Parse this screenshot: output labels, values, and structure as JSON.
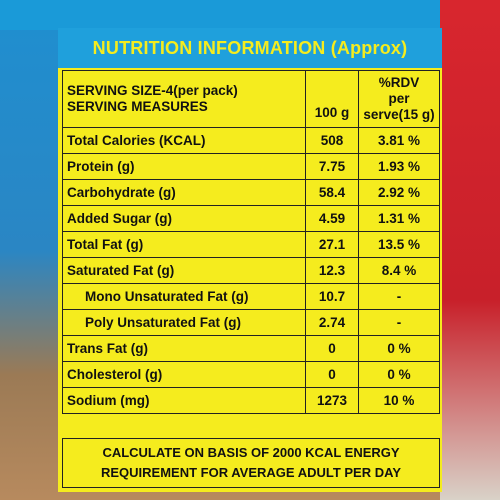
{
  "title": "NUTRITION INFORMATION (Approx)",
  "table": {
    "header": {
      "col1": [
        "SERVING SIZE-4(per pack)",
        "SERVING MEASURES"
      ],
      "col2": "100 g",
      "col3": [
        "%RDV",
        "per serve(15 g)"
      ]
    },
    "rows": [
      [
        "Total Calories (KCAL)",
        "508",
        "3.81 %"
      ],
      [
        "Protein (g)",
        "7.75",
        "1.93 %"
      ],
      [
        "Carbohydrate (g)",
        "58.4",
        "2.92 %"
      ],
      [
        "Added Sugar (g)",
        "4.59",
        "1.31 %"
      ],
      [
        "Total Fat (g)",
        "27.1",
        "13.5 %"
      ],
      [
        "Saturated Fat (g)",
        "12.3",
        "8.4 %"
      ],
      [
        "Mono Unsaturated Fat (g)",
        "10.7",
        "-"
      ],
      [
        "Poly Unsaturated Fat (g)",
        "2.74",
        "-"
      ],
      [
        "Trans Fat (g)",
        "0",
        "0 %"
      ],
      [
        "Cholesterol (g)",
        "0",
        "0 %"
      ],
      [
        "Sodium (mg)",
        "1273",
        "10 %"
      ]
    ]
  },
  "footer": [
    "CALCULATE ON BASIS OF 2000 KCAL ENERGY",
    "REQUIREMENT FOR AVERAGE ADULT PER DAY"
  ]
}
